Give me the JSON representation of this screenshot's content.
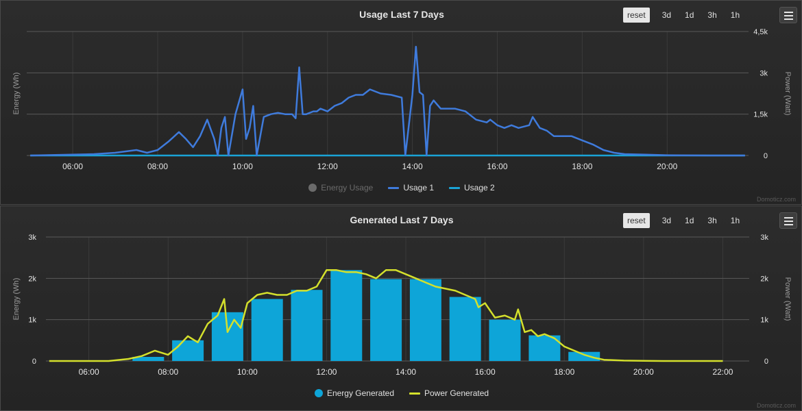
{
  "colors": {
    "usage1": "#3f7bdc",
    "usage2": "#1aa3d6",
    "energy_usage": "#6b6b6b",
    "energy_generated": "#0ea5d8",
    "power_generated": "#d4e02c",
    "grid": "#5a5a5a",
    "tick": "#e6e6e6"
  },
  "zoom_buttons": [
    "reset",
    "3d",
    "1d",
    "3h",
    "1h"
  ],
  "menu_icon": "hamburger-menu-icon",
  "credit": "Domoticz.com",
  "chart_data": [
    {
      "type": "line",
      "title": "Usage Last 7 Days",
      "x_range": [
        "04:55",
        "21:55"
      ],
      "x_ticks": [
        "06:00",
        "08:00",
        "10:00",
        "12:00",
        "14:00",
        "16:00",
        "18:00",
        "20:00"
      ],
      "y_left": {
        "label": "Energy (Wh)",
        "ticks": [],
        "range": [
          0,
          4500
        ]
      },
      "y_right": {
        "label": "Power (Watt)",
        "ticks": [
          "0",
          "1,5k",
          "3k",
          "4,5k"
        ],
        "values": [
          0,
          1500,
          3000,
          4500
        ],
        "range": [
          0,
          4500
        ]
      },
      "grid": true,
      "legend": {
        "placement": "bottom-center",
        "items": [
          {
            "name": "Energy Usage",
            "symbol": "dot",
            "hidden": true
          },
          {
            "name": "Usage 1",
            "symbol": "line"
          },
          {
            "name": "Usage 2",
            "symbol": "line"
          }
        ]
      },
      "series": [
        {
          "name": "Usage 1",
          "x": [
            "05:00",
            "06:30",
            "07:00",
            "07:30",
            "07:45",
            "08:00",
            "08:15",
            "08:30",
            "08:40",
            "08:50",
            "09:00",
            "09:10",
            "09:20",
            "09:25",
            "09:30",
            "09:35",
            "09:40",
            "09:50",
            "10:00",
            "10:05",
            "10:10",
            "10:15",
            "10:20",
            "10:30",
            "10:40",
            "10:50",
            "11:00",
            "11:10",
            "11:15",
            "11:20",
            "11:25",
            "11:30",
            "11:40",
            "11:45",
            "11:50",
            "12:00",
            "12:10",
            "12:20",
            "12:30",
            "12:40",
            "12:50",
            "13:00",
            "13:15",
            "13:30",
            "13:45",
            "13:50",
            "14:00",
            "14:05",
            "14:10",
            "14:15",
            "14:20",
            "14:25",
            "14:30",
            "14:40",
            "15:00",
            "15:15",
            "15:30",
            "15:45",
            "15:50",
            "16:00",
            "16:10",
            "16:20",
            "16:30",
            "16:45",
            "16:50",
            "17:00",
            "17:10",
            "17:20",
            "17:30",
            "17:45",
            "18:00",
            "18:15",
            "18:30",
            "18:45",
            "19:00",
            "19:30",
            "20:00",
            "21:00",
            "21:50"
          ],
          "y": [
            0,
            50,
            100,
            200,
            100,
            200,
            500,
            850,
            600,
            300,
            700,
            1300,
            600,
            0,
            1000,
            1400,
            0,
            1500,
            2400,
            600,
            1000,
            1800,
            0,
            1400,
            1500,
            1550,
            1500,
            1500,
            1350,
            3200,
            1500,
            1500,
            1600,
            1600,
            1700,
            1600,
            1800,
            1900,
            2100,
            2200,
            2200,
            2400,
            2250,
            2200,
            2100,
            0,
            2200,
            3950,
            2300,
            2200,
            0,
            1800,
            2000,
            1700,
            1700,
            1600,
            1300,
            1200,
            1300,
            1100,
            1000,
            1100,
            1000,
            1100,
            1400,
            1000,
            900,
            700,
            700,
            700,
            550,
            400,
            200,
            100,
            50,
            30,
            10,
            0,
            0
          ]
        },
        {
          "name": "Usage 2",
          "x": [
            "05:00",
            "21:50"
          ],
          "y": [
            0,
            0
          ]
        }
      ]
    },
    {
      "type": "bar",
      "title": "Generated Last 7 Days",
      "x_range": [
        "04:55",
        "22:40"
      ],
      "x_ticks": [
        "06:00",
        "08:00",
        "10:00",
        "12:00",
        "14:00",
        "16:00",
        "18:00",
        "20:00",
        "22:00"
      ],
      "y_left": {
        "label": "Energy (Wh)",
        "ticks": [
          "0",
          "1k",
          "2k",
          "3k"
        ],
        "values": [
          0,
          1000,
          2000,
          3000
        ],
        "range": [
          0,
          3000
        ]
      },
      "y_right": {
        "label": "Power (Watt)",
        "ticks": [
          "0",
          "1k",
          "2k",
          "3k"
        ],
        "values": [
          0,
          1000,
          2000,
          3000
        ],
        "range": [
          0,
          3000
        ]
      },
      "grid": true,
      "legend": {
        "placement": "bottom-center",
        "items": [
          {
            "name": "Energy Generated",
            "symbol": "dot"
          },
          {
            "name": "Power Generated",
            "symbol": "line"
          }
        ]
      },
      "series": [
        {
          "name": "Energy Generated",
          "type": "bar",
          "x": [
            "07:30",
            "08:30",
            "09:30",
            "10:30",
            "11:30",
            "12:30",
            "13:30",
            "14:30",
            "15:30",
            "16:30",
            "17:30",
            "18:30"
          ],
          "y": [
            100,
            500,
            1180,
            1500,
            1720,
            2200,
            1980,
            1980,
            1550,
            1000,
            620,
            220
          ]
        },
        {
          "name": "Power Generated",
          "type": "line",
          "x": [
            "05:00",
            "06:30",
            "07:00",
            "07:20",
            "07:40",
            "08:00",
            "08:15",
            "08:30",
            "08:45",
            "09:00",
            "09:15",
            "09:25",
            "09:30",
            "09:40",
            "09:50",
            "10:00",
            "10:15",
            "10:30",
            "10:45",
            "11:00",
            "11:15",
            "11:30",
            "11:45",
            "12:00",
            "12:15",
            "12:30",
            "12:45",
            "13:00",
            "13:15",
            "13:30",
            "13:45",
            "14:00",
            "14:15",
            "14:30",
            "14:45",
            "15:00",
            "15:15",
            "15:30",
            "15:45",
            "15:50",
            "16:00",
            "16:15",
            "16:30",
            "16:45",
            "16:50",
            "17:00",
            "17:10",
            "17:20",
            "17:30",
            "17:45",
            "18:00",
            "18:15",
            "18:30",
            "18:45",
            "19:00",
            "19:30",
            "20:00",
            "20:30",
            "21:00",
            "22:00"
          ],
          "y": [
            0,
            0,
            50,
            120,
            250,
            150,
            350,
            600,
            450,
            900,
            1100,
            1500,
            700,
            1000,
            800,
            1400,
            1600,
            1650,
            1600,
            1600,
            1700,
            1700,
            1800,
            2200,
            2200,
            2150,
            2150,
            2100,
            2000,
            2200,
            2200,
            2100,
            2000,
            1900,
            1800,
            1750,
            1700,
            1600,
            1500,
            1300,
            1400,
            1050,
            1100,
            1000,
            1250,
            700,
            750,
            600,
            650,
            550,
            350,
            250,
            150,
            80,
            30,
            10,
            5,
            0,
            0,
            0
          ]
        }
      ]
    }
  ]
}
